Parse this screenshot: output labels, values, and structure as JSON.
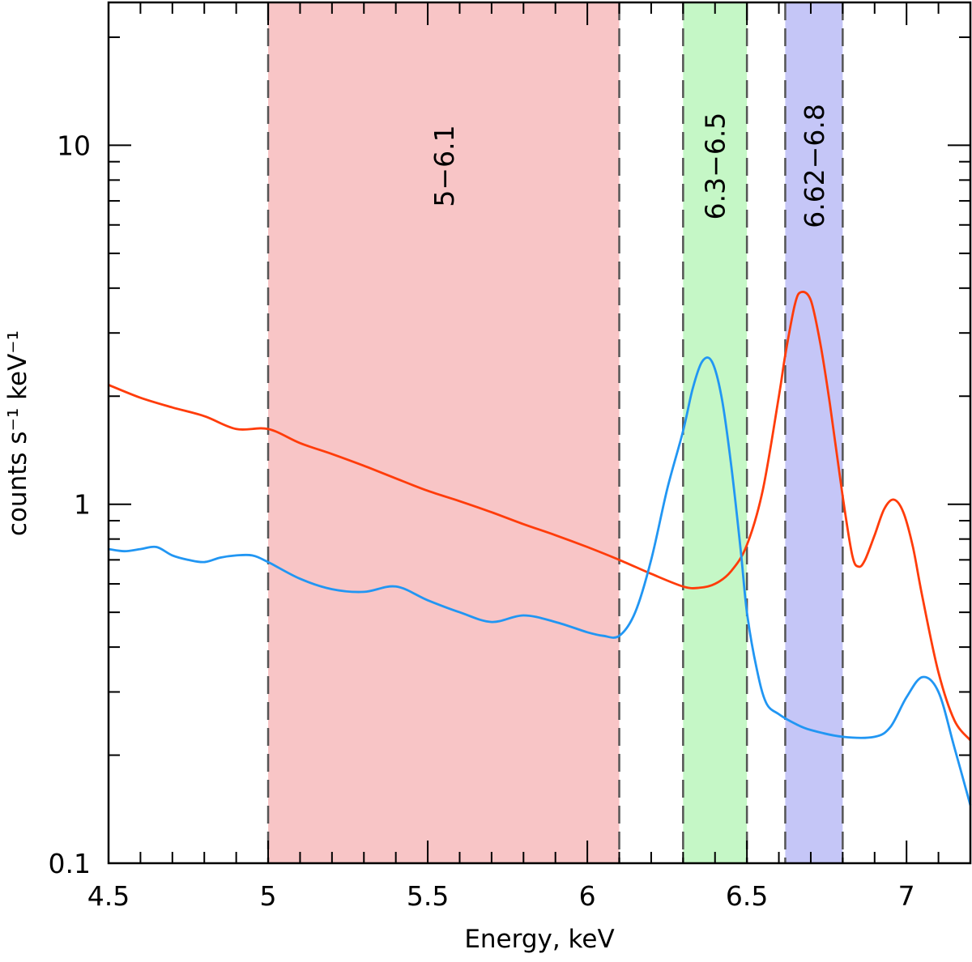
{
  "chart_data": {
    "type": "line",
    "title": "",
    "xlabel": "Energy, keV",
    "ylabel": "counts s⁻¹ keV⁻¹",
    "xlim": [
      4.5,
      7.2
    ],
    "ylim": [
      0.1,
      25
    ],
    "yscale": "log",
    "x_ticks": [
      4.5,
      5,
      5.5,
      6,
      6.5,
      7
    ],
    "x_tick_labels": [
      "4.5",
      "5",
      "5.5",
      "6",
      "6.5",
      "7"
    ],
    "y_ticks": [
      0.1,
      1,
      10
    ],
    "y_tick_labels": [
      "0.1",
      "1",
      "10"
    ],
    "bands": [
      {
        "label": "5−6.1",
        "start": 5.0,
        "end": 6.1,
        "color": "#f8c5c6"
      },
      {
        "label": "6.3−6.5",
        "start": 6.3,
        "end": 6.5,
        "color": "#c5f7c6"
      },
      {
        "label": "6.62−6.8",
        "start": 6.62,
        "end": 6.8,
        "color": "#c5c6f7"
      }
    ],
    "series": [
      {
        "name": "red spectrum",
        "color": "#ff3c0a",
        "x": [
          4.5,
          4.6,
          4.7,
          4.8,
          4.9,
          5.0,
          5.1,
          5.2,
          5.3,
          5.4,
          5.5,
          5.6,
          5.7,
          5.8,
          5.9,
          6.0,
          6.1,
          6.2,
          6.3,
          6.35,
          6.4,
          6.45,
          6.5,
          6.55,
          6.6,
          6.62,
          6.65,
          6.67,
          6.7,
          6.73,
          6.76,
          6.8,
          6.83,
          6.85,
          6.87,
          6.9,
          6.93,
          6.96,
          6.99,
          7.02,
          7.05,
          7.1,
          7.15,
          7.2
        ],
        "y": [
          2.15,
          1.98,
          1.86,
          1.76,
          1.62,
          1.62,
          1.48,
          1.38,
          1.28,
          1.18,
          1.09,
          1.02,
          0.95,
          0.88,
          0.82,
          0.76,
          0.7,
          0.64,
          0.59,
          0.585,
          0.6,
          0.65,
          0.77,
          1.1,
          2.0,
          2.6,
          3.6,
          3.9,
          3.7,
          2.8,
          1.9,
          1.05,
          0.72,
          0.67,
          0.7,
          0.82,
          0.97,
          1.03,
          0.95,
          0.76,
          0.55,
          0.34,
          0.25,
          0.22
        ]
      },
      {
        "name": "blue spectrum",
        "color": "#2196f3",
        "x": [
          4.5,
          4.55,
          4.6,
          4.65,
          4.7,
          4.75,
          4.8,
          4.85,
          4.9,
          4.95,
          5.0,
          5.1,
          5.2,
          5.3,
          5.4,
          5.5,
          5.6,
          5.7,
          5.8,
          5.9,
          6.0,
          6.05,
          6.1,
          6.15,
          6.2,
          6.25,
          6.3,
          6.33,
          6.36,
          6.39,
          6.42,
          6.45,
          6.48,
          6.5,
          6.53,
          6.56,
          6.6,
          6.65,
          6.7,
          6.8,
          6.9,
          6.95,
          7.0,
          7.05,
          7.1,
          7.15,
          7.2
        ],
        "y": [
          0.75,
          0.74,
          0.75,
          0.76,
          0.72,
          0.7,
          0.69,
          0.71,
          0.72,
          0.72,
          0.69,
          0.62,
          0.58,
          0.57,
          0.59,
          0.54,
          0.5,
          0.47,
          0.49,
          0.47,
          0.44,
          0.43,
          0.43,
          0.5,
          0.7,
          1.1,
          1.6,
          2.1,
          2.5,
          2.5,
          2.0,
          1.3,
          0.75,
          0.5,
          0.35,
          0.28,
          0.26,
          0.245,
          0.235,
          0.225,
          0.225,
          0.24,
          0.29,
          0.33,
          0.3,
          0.21,
          0.145
        ]
      }
    ]
  }
}
